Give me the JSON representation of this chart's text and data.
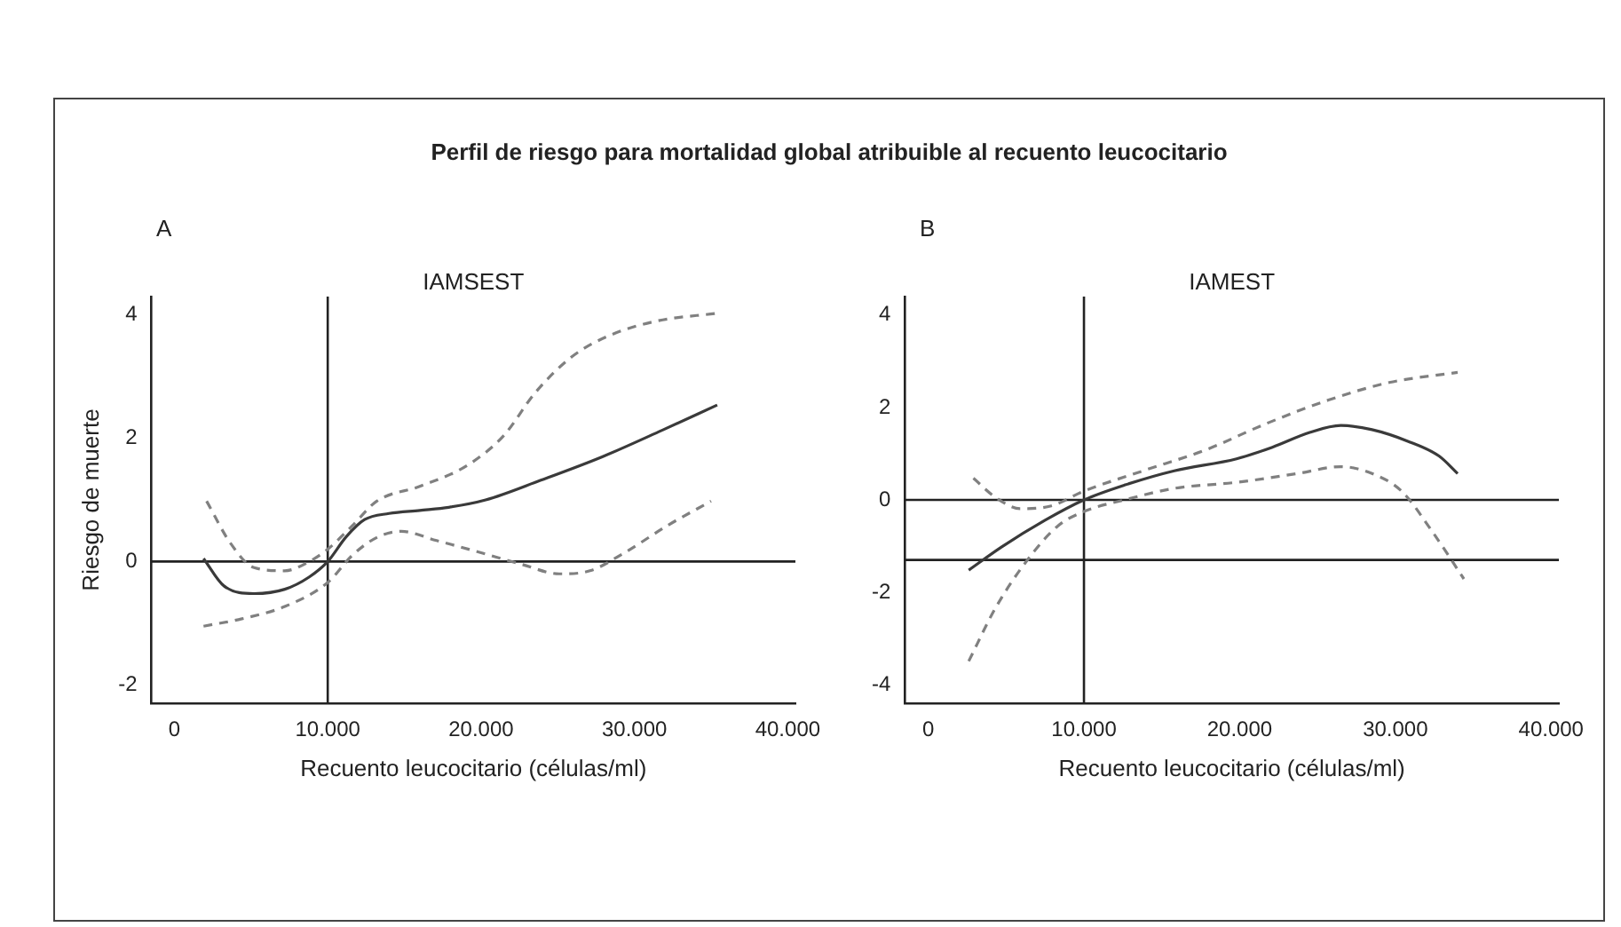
{
  "chart_data": [
    {
      "type": "line",
      "title": "A",
      "subtitle": "IAMSEST",
      "xlabel": "Recuento leucocitario (células/ml)",
      "ylabel": "Riesgo de muerte",
      "annotations": [
        "Perfil de riesgo para mortalidad global atribuible al recuento leucocitario"
      ],
      "xlim": [
        -1500,
        40500
      ],
      "ylim": [
        -2.3,
        4.3
      ],
      "xticks": [
        0,
        {
          "value": 10000,
          "label": "10.000"
        },
        {
          "value": 20000,
          "label": "20.000"
        },
        {
          "value": 30000,
          "label": "30.000"
        },
        {
          "value": 40000,
          "label": "40.000"
        }
      ],
      "yticks": [
        -2,
        0,
        2,
        4
      ],
      "grid": false,
      "legend": false,
      "ref_lines": [
        {
          "axis": "y",
          "value": 0,
          "color": "#222222"
        },
        {
          "axis": "x",
          "value": 10000,
          "color": "#222222"
        }
      ],
      "series": [
        {
          "color": "#3a3a3a",
          "line_style": "solid",
          "x": [
            1900,
            3250,
            5200,
            7200,
            8800,
            10000,
            11200,
            12400,
            14000,
            16000,
            17900,
            20300,
            23900,
            27900,
            31800,
            35400
          ],
          "values": [
            0.05,
            -0.4,
            -0.52,
            -0.45,
            -0.25,
            0,
            0.4,
            0.68,
            0.78,
            0.83,
            0.88,
            1.0,
            1.32,
            1.7,
            2.13,
            2.54
          ]
        },
        {
          "color": "#808080",
          "line_style": "dashed",
          "x": [
            2100,
            3650,
            5200,
            7200,
            8800,
            10000,
            11600,
            13200,
            16000,
            19100,
            21500,
            23500,
            25900,
            28300,
            31400,
            35400
          ],
          "values": [
            0.98,
            0.3,
            -0.1,
            -0.15,
            0,
            0.2,
            0.58,
            0.98,
            1.22,
            1.56,
            2.05,
            2.73,
            3.32,
            3.66,
            3.9,
            4.03
          ]
        },
        {
          "color": "#808080",
          "line_style": "dashed",
          "x": [
            1900,
            4400,
            7200,
            10000,
            11600,
            13200,
            14800,
            17100,
            19900,
            22700,
            25100,
            27100,
            29400,
            32200,
            35000
          ],
          "values": [
            -1.05,
            -0.93,
            -0.73,
            -0.34,
            0.1,
            0.39,
            0.49,
            0.34,
            0.15,
            -0.05,
            -0.2,
            -0.15,
            0.15,
            0.59,
            0.98
          ]
        }
      ]
    },
    {
      "type": "line",
      "title": "B",
      "subtitle": "IAMEST",
      "xlabel": "Recuento leucocitario (células/ml)",
      "xlim": [
        -1500,
        40500
      ],
      "ylim": [
        -4.4,
        4.4
      ],
      "xticks": [
        0,
        {
          "value": 10000,
          "label": "10.000"
        },
        {
          "value": 20000,
          "label": "20.000"
        },
        {
          "value": 30000,
          "label": "30.000"
        },
        {
          "value": 40000,
          "label": "40.000"
        }
      ],
      "yticks": [
        -4,
        -2,
        0,
        2,
        4
      ],
      "grid": false,
      "legend": false,
      "ref_lines": [
        {
          "axis": "y",
          "value": 0,
          "color": "#222222"
        },
        {
          "axis": "y",
          "value": -1.3,
          "color": "#222222"
        },
        {
          "axis": "x",
          "value": 10000,
          "color": "#222222"
        }
      ],
      "series": [
        {
          "color": "#3a3a3a",
          "line_style": "solid",
          "x": [
            2600,
            4700,
            7500,
            10000,
            12600,
            15800,
            19800,
            22100,
            24500,
            26500,
            28500,
            30800,
            32800,
            34000
          ],
          "values": [
            -1.52,
            -1.02,
            -0.44,
            0,
            0.32,
            0.63,
            0.89,
            1.14,
            1.46,
            1.61,
            1.52,
            1.27,
            0.95,
            0.57
          ]
        },
        {
          "color": "#808080",
          "line_style": "dashed",
          "x": [
            2900,
            4300,
            5900,
            7900,
            10000,
            13800,
            17800,
            21700,
            25700,
            29600,
            34000
          ],
          "values": [
            0.47,
            0.06,
            -0.19,
            -0.13,
            0.19,
            0.63,
            1.08,
            1.65,
            2.16,
            2.54,
            2.76
          ]
        },
        {
          "color": "#808080",
          "line_style": "dashed",
          "x": [
            2600,
            4300,
            6300,
            8300,
            10000,
            12600,
            15800,
            19800,
            23700,
            26500,
            28500,
            30400,
            32400,
            34400
          ],
          "values": [
            -3.49,
            -2.35,
            -1.33,
            -0.57,
            -0.25,
            0,
            0.25,
            0.38,
            0.57,
            0.72,
            0.57,
            0.19,
            -0.7,
            -1.71
          ]
        }
      ]
    }
  ]
}
